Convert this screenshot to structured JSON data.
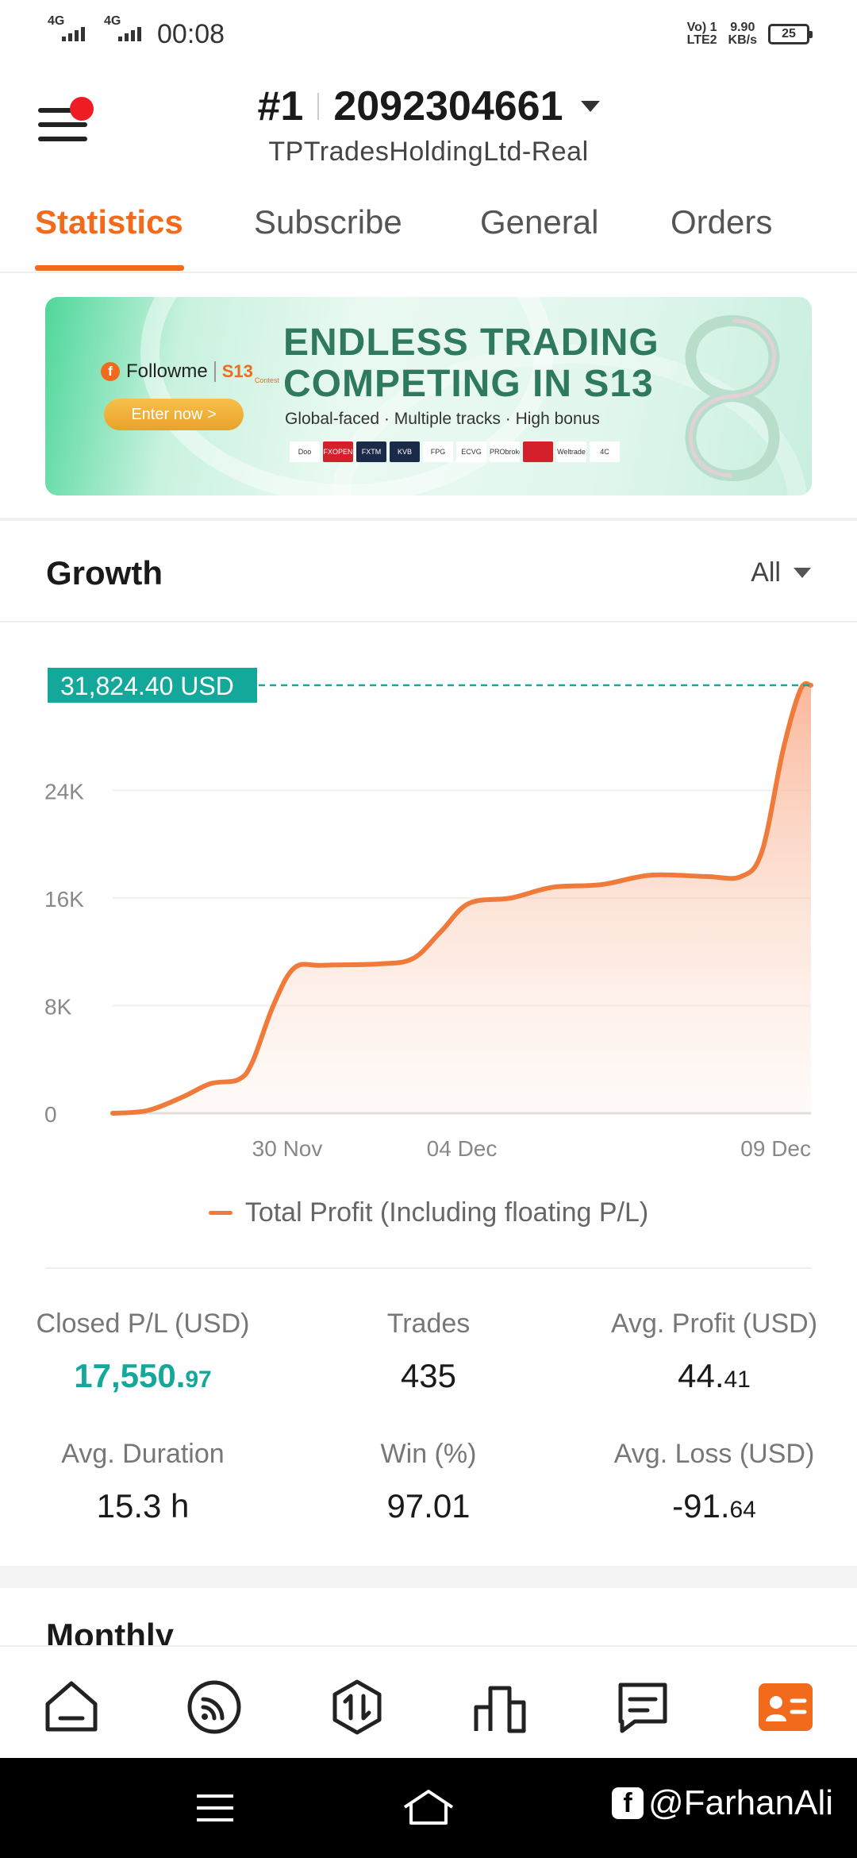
{
  "status_bar": {
    "sim1": "4G",
    "sim2": "4G",
    "time": "00:08",
    "volte": "Vo) 1",
    "lte": "LTE2",
    "speed_value": "9.90",
    "speed_unit": "KB/s",
    "battery": "25"
  },
  "header": {
    "rank": "#1",
    "account_number": "2092304661",
    "broker": "TPTradesHoldingLtd-Real"
  },
  "tabs": [
    {
      "label": "Statistics",
      "active": true
    },
    {
      "label": "Subscribe",
      "active": false
    },
    {
      "label": "General",
      "active": false
    },
    {
      "label": "Orders",
      "active": false
    }
  ],
  "banner": {
    "brand": "Followme",
    "badge": "S13",
    "badge_sub": "Contest",
    "cta": "Enter now >",
    "title_line1": "ENDLESS TRADING",
    "title_line2": "COMPETING IN S13",
    "subtitle": "Global-faced · Multiple tracks · High bonus",
    "sponsors": [
      "Doo Prime",
      "FXOPEN",
      "FXTM",
      "KVB PRIME",
      "FPG",
      "ECVG",
      "PRObroker",
      "",
      "Weltrade",
      "4C"
    ]
  },
  "growth": {
    "title": "Growth",
    "range": "All"
  },
  "chart_data": {
    "type": "area",
    "series": [
      {
        "name": "Total Profit (Including floating P/L)",
        "color": "#f07a3a",
        "points": [
          [
            0,
            0
          ],
          [
            0.05,
            200
          ],
          [
            0.1,
            1200
          ],
          [
            0.14,
            2200
          ],
          [
            0.18,
            2500
          ],
          [
            0.2,
            3800
          ],
          [
            0.23,
            8000
          ],
          [
            0.26,
            10800
          ],
          [
            0.3,
            11000
          ],
          [
            0.38,
            11100
          ],
          [
            0.43,
            11500
          ],
          [
            0.47,
            13500
          ],
          [
            0.51,
            15600
          ],
          [
            0.57,
            16000
          ],
          [
            0.63,
            16800
          ],
          [
            0.7,
            17000
          ],
          [
            0.77,
            17700
          ],
          [
            0.85,
            17600
          ],
          [
            0.9,
            17600
          ],
          [
            0.93,
            19500
          ],
          [
            0.96,
            27000
          ],
          [
            0.985,
            31500
          ],
          [
            1.0,
            31824.4
          ]
        ]
      }
    ],
    "x_tick_labels": [
      "30 Nov",
      "04 Dec",
      "09 Dec"
    ],
    "x_tick_positions": [
      0.25,
      0.5,
      1.0
    ],
    "y_ticks": [
      0,
      8000,
      16000,
      24000
    ],
    "y_tick_labels": [
      "0",
      "8K",
      "16K",
      "24K"
    ],
    "ylim": [
      0,
      32000
    ],
    "current_value_label": "31,824.40 USD",
    "grid": true,
    "legend_placement": "bottom-center",
    "fill_color": "#f9a07a"
  },
  "legend": {
    "label": "Total Profit (Including floating P/L)"
  },
  "stats": [
    {
      "label": "Closed P/L (USD)",
      "value_main": "17,550.",
      "value_small": "97",
      "highlight": true
    },
    {
      "label": "Trades",
      "value_main": "435",
      "value_small": "",
      "highlight": false
    },
    {
      "label": "Avg. Profit (USD)",
      "value_main": "44.",
      "value_small": "41",
      "highlight": false
    },
    {
      "label": "Avg. Duration",
      "value_main": "15.3 h",
      "value_small": "",
      "highlight": false
    },
    {
      "label": "Win (%)",
      "value_main": "97.01",
      "value_small": "",
      "highlight": false
    },
    {
      "label": "Avg. Loss (USD)",
      "value_main": "-91.",
      "value_small": "64",
      "highlight": false
    }
  ],
  "monthly": {
    "title": "Monthly"
  },
  "bottom_nav": [
    {
      "icon": "home-icon",
      "active": false
    },
    {
      "icon": "feed-icon",
      "active": false
    },
    {
      "icon": "trade-icon",
      "active": false
    },
    {
      "icon": "ranking-icon",
      "active": false
    },
    {
      "icon": "message-icon",
      "active": false
    },
    {
      "icon": "profile-card-icon",
      "active": true
    }
  ],
  "watermark": "@FarhanAli",
  "colors": {
    "accent": "#f26a1b",
    "profit": "#14a89a",
    "chart_line": "#f07a3a"
  }
}
